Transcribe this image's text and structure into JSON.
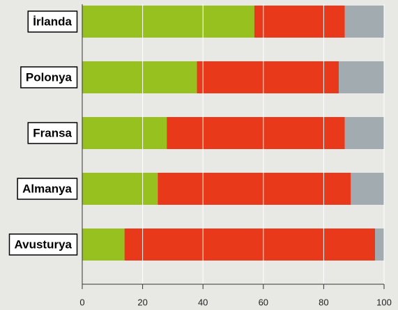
{
  "chart_data": {
    "type": "stacked-barh",
    "categories": [
      "İrlanda",
      "Polonya",
      "Fransa",
      "Almanya",
      "Avusturya"
    ],
    "series": [
      {
        "color": "#97c11f",
        "values": [
          57,
          38,
          28,
          25,
          14
        ]
      },
      {
        "color": "#e8391a",
        "values": [
          30,
          47,
          59,
          64,
          83
        ]
      },
      {
        "color": "#a2abb0",
        "values": [
          13,
          15,
          13,
          11,
          3
        ]
      }
    ],
    "xlim": [
      0,
      100
    ],
    "xticks": [
      0,
      20,
      40,
      60,
      80,
      100
    ],
    "grid": true
  }
}
